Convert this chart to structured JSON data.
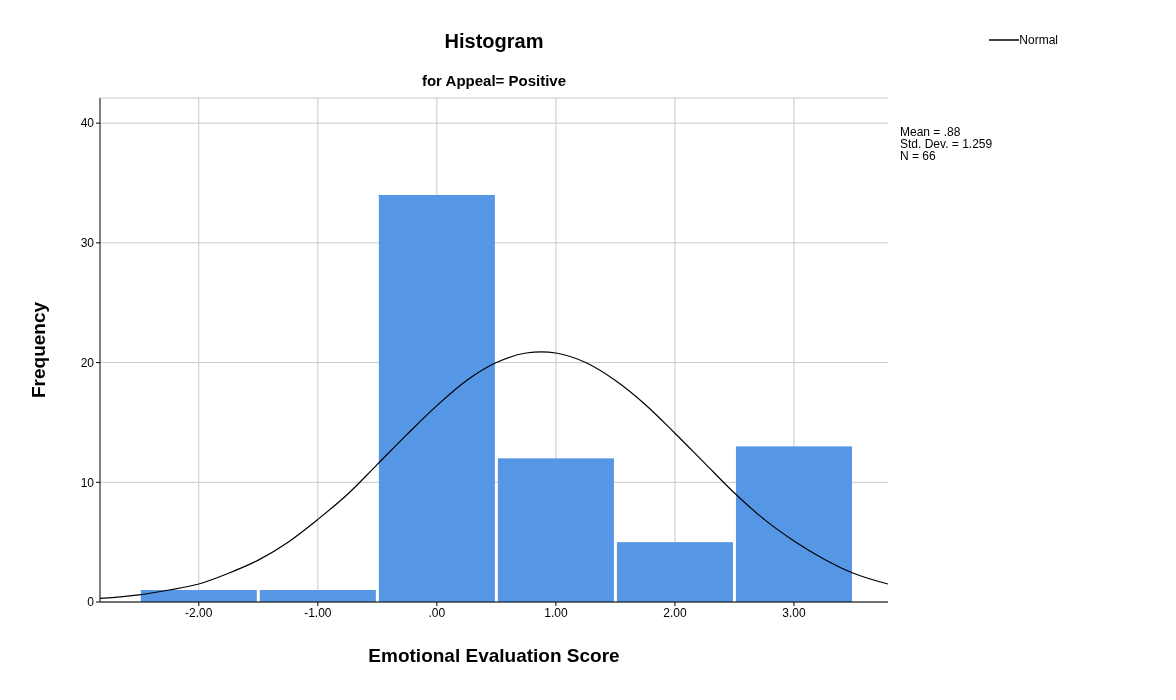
{
  "chart_data": {
    "type": "histogram",
    "title": "Histogram",
    "subtitle": "for Appeal= Positive",
    "xlabel": "Emotional Evaluation Score",
    "ylabel": "Frequency",
    "bins": [
      -2.5,
      -1.5,
      -0.5,
      0.5,
      1.5,
      2.5,
      3.5
    ],
    "series": [
      {
        "color": "#5697e5",
        "values": [
          1,
          1,
          34,
          12,
          5,
          13
        ]
      },
      {
        "type": "line",
        "name": "Normal",
        "color": "#000000",
        "x": [
          -2.83,
          -2.5,
          -2.25,
          -2,
          -1.75,
          -1.5,
          -1.25,
          -1,
          -0.75,
          -0.5,
          -0.25,
          0,
          0.25,
          0.5,
          0.75,
          0.88,
          1,
          1.25,
          1.5,
          1.75,
          2,
          2.25,
          2.5,
          2.75,
          3,
          3.25,
          3.5,
          3.79
        ],
        "values": [
          0.3,
          0.6,
          1,
          1.5,
          2.4,
          3.5,
          5,
          6.9,
          9,
          11.5,
          14,
          16.4,
          18.5,
          20,
          20.8,
          20.9,
          20.8,
          20,
          18.5,
          16.5,
          14.1,
          11.6,
          9.1,
          6.9,
          5.1,
          3.6,
          2.4,
          1.5
        ]
      }
    ],
    "xlim": [
      -2.83,
      3.79
    ],
    "xticks": [
      {
        "value": -2,
        "label": "-2.00"
      },
      {
        "value": -1,
        "label": "-1.00"
      },
      {
        "value": 0,
        "label": ".00"
      },
      {
        "value": 1,
        "label": "1.00"
      },
      {
        "value": 2,
        "label": "2.00"
      },
      {
        "value": 3,
        "label": "3.00"
      }
    ],
    "ylim": [
      0,
      42.1
    ],
    "yticks": [
      0,
      10,
      20,
      30,
      40
    ],
    "grid": true,
    "legend": "top right",
    "marker": "none",
    "line_style": "solid",
    "annotations": [
      "Mean = .88",
      "Std. Dev. = 1.259",
      "N = 66"
    ]
  }
}
